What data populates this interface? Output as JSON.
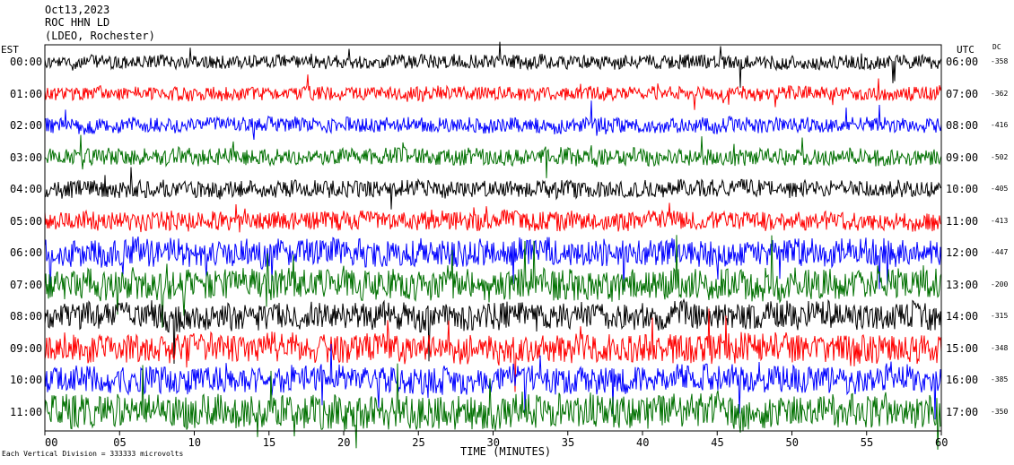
{
  "header": {
    "date": "Oct13,2023",
    "station": "ROC HHN LD",
    "network": "(LDEO, Rochester)"
  },
  "left_axis_title": "EST",
  "right_axis_title": "UTC",
  "dc_title": "DC",
  "x_axis_label": "TIME (MINUTES)",
  "scale_note": "Each Vertical Division = 333333 microvolts",
  "chart_data": {
    "type": "line",
    "x_unit": "minutes",
    "xlim": [
      0,
      60
    ],
    "x_ticks": [
      "00",
      "05",
      "10",
      "15",
      "20",
      "25",
      "30",
      "35",
      "40",
      "45",
      "50",
      "55",
      "60"
    ],
    "trace_colors": [
      "#000000",
      "#ff0000",
      "#0000ff",
      "#007000"
    ],
    "rows": [
      {
        "est": "00:00",
        "utc": "06:00",
        "dc": "-358",
        "color": "#000000",
        "noise": 0.25
      },
      {
        "est": "01:00",
        "utc": "07:00",
        "dc": "-362",
        "color": "#ff0000",
        "noise": 0.25
      },
      {
        "est": "02:00",
        "utc": "08:00",
        "dc": "-416",
        "color": "#0000ff",
        "noise": 0.3
      },
      {
        "est": "03:00",
        "utc": "09:00",
        "dc": "-502",
        "color": "#007000",
        "noise": 0.4
      },
      {
        "est": "04:00",
        "utc": "10:00",
        "dc": "-405",
        "color": "#000000",
        "noise": 0.4
      },
      {
        "est": "05:00",
        "utc": "11:00",
        "dc": "-413",
        "color": "#ff0000",
        "noise": 0.5
      },
      {
        "est": "06:00",
        "utc": "12:00",
        "dc": "-447",
        "color": "#0000ff",
        "noise": 0.9
      },
      {
        "est": "07:00",
        "utc": "13:00",
        "dc": "-200",
        "color": "#007000",
        "noise": 1.1
      },
      {
        "est": "08:00",
        "utc": "14:00",
        "dc": "-315",
        "color": "#000000",
        "noise": 0.9
      },
      {
        "est": "09:00",
        "utc": "15:00",
        "dc": "-348",
        "color": "#ff0000",
        "noise": 1.0
      },
      {
        "est": "10:00",
        "utc": "16:00",
        "dc": "-385",
        "color": "#0000ff",
        "noise": 0.9
      },
      {
        "est": "11:00",
        "utc": "17:00",
        "dc": "-350",
        "color": "#007000",
        "noise": 1.2
      }
    ]
  }
}
